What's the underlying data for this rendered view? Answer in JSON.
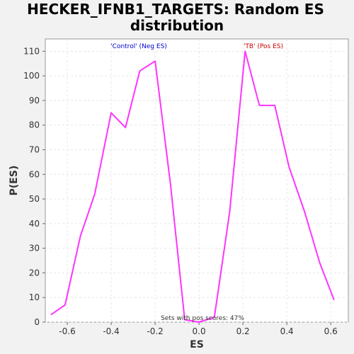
{
  "chart_data": {
    "type": "line",
    "title_line1": "HECKER_IFNB1_TARGETS: Random ES",
    "title_line2": "distribution",
    "xlabel": "ES",
    "ylabel": "P(ES)",
    "xlim": [
      -0.7,
      0.68
    ],
    "ylim": [
      0,
      115
    ],
    "x_ticks": [
      -0.6,
      -0.4,
      -0.2,
      0.0,
      0.2,
      0.4,
      0.6
    ],
    "x_tick_labels": [
      "-0.6",
      "-0.4",
      "-0.2",
      "0.0",
      "0.2",
      "0.4",
      "0.6"
    ],
    "y_ticks": [
      0,
      10,
      20,
      30,
      40,
      50,
      60,
      70,
      80,
      90,
      100,
      110
    ],
    "y_tick_labels": [
      "0",
      "10",
      "20",
      "30",
      "40",
      "50",
      "60",
      "70",
      "80",
      "90",
      "100",
      "110"
    ],
    "grid": true,
    "series": [
      {
        "color": "#ff33ff",
        "x": [
          -0.675,
          -0.61,
          -0.54,
          -0.475,
          -0.4,
          -0.335,
          -0.27,
          -0.2,
          -0.13,
          -0.065,
          0.0,
          0.07,
          0.14,
          0.21,
          0.275,
          0.345,
          0.41,
          0.48,
          0.55,
          0.615
        ],
        "y": [
          3,
          7,
          35,
          52,
          85,
          79,
          102,
          106,
          56,
          1,
          0,
          2,
          45,
          110,
          88,
          88,
          63,
          45,
          24,
          9
        ]
      }
    ],
    "annotations": {
      "neg_label": "'Control' (Neg ES)",
      "neg_color": "#0000cc",
      "pos_label": "'TB' (Pos ES)",
      "pos_color": "#cc0000",
      "footer": "Sets with pos scores: 47%"
    }
  }
}
